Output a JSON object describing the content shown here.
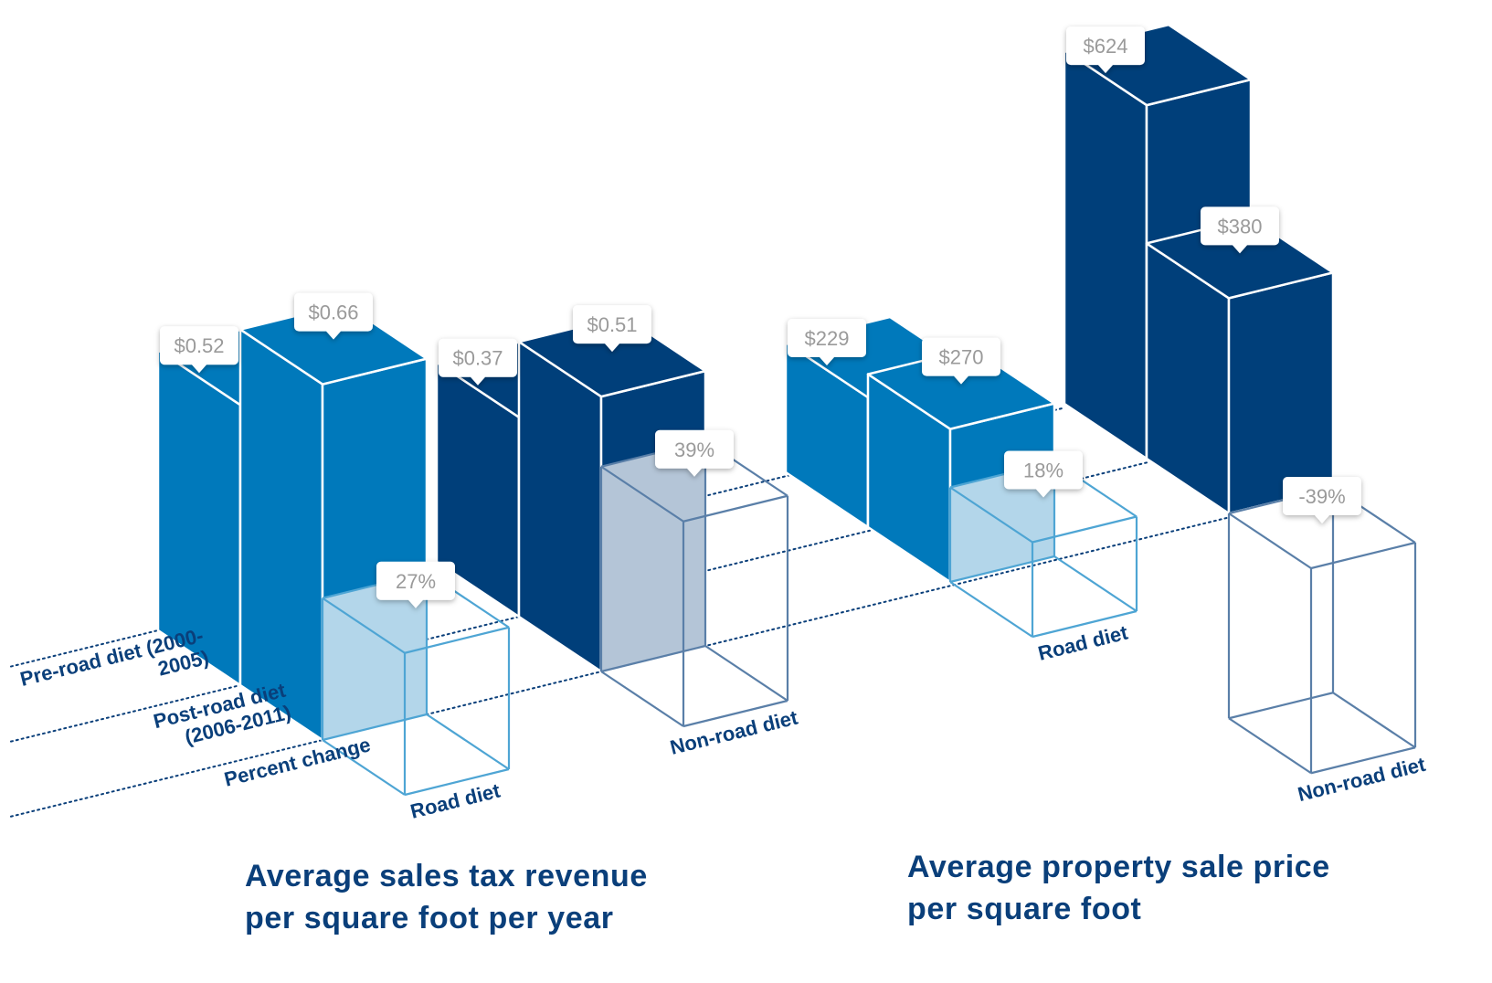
{
  "chart_data": [
    {
      "type": "bar",
      "title": "Average sales tax revenue per square foot per year",
      "categories": [
        "Road diet",
        "Non-road diet"
      ],
      "series": [
        {
          "name": "Pre-road diet (2000-2005)",
          "colors": [
            "#0079bb",
            "#003f7a"
          ],
          "values": [
            0.52,
            0.37
          ],
          "value_labels": [
            "$0.52",
            "$0.37"
          ]
        },
        {
          "name": "Post-road diet (2006-2011)",
          "colors": [
            "#0079bb",
            "#003f7a"
          ],
          "values": [
            0.66,
            0.51
          ],
          "value_labels": [
            "$0.66",
            "$0.51"
          ]
        },
        {
          "name": "Percent change",
          "axis": "y2",
          "colors": [
            "#4ea5d4",
            "#5a7fa8"
          ],
          "fill_colors": [
            "#b3d6ea",
            "#b4c5d7"
          ],
          "values": [
            27,
            39
          ],
          "value_labels": [
            "27%",
            "39%"
          ]
        }
      ]
    },
    {
      "type": "bar",
      "title": "Average property sale price per square foot",
      "categories": [
        "Road diet",
        "Non-road diet"
      ],
      "series": [
        {
          "colors": [
            "#0079bb",
            "#003f7a"
          ],
          "values": [
            229,
            624
          ],
          "value_labels": [
            "$229",
            "$624"
          ]
        },
        {
          "colors": [
            "#0079bb",
            "#003f7a"
          ],
          "values": [
            270,
            380
          ],
          "value_labels": [
            "$270",
            "$380"
          ]
        },
        {
          "axis": "y2",
          "colors": [
            "#4ea5d4",
            "#5a7fa8"
          ],
          "fill_colors": [
            "#b3d6ea",
            "#b4c5d7"
          ],
          "values": [
            18,
            -39
          ],
          "value_labels": [
            "18%",
            "-39%"
          ]
        }
      ]
    }
  ]
}
